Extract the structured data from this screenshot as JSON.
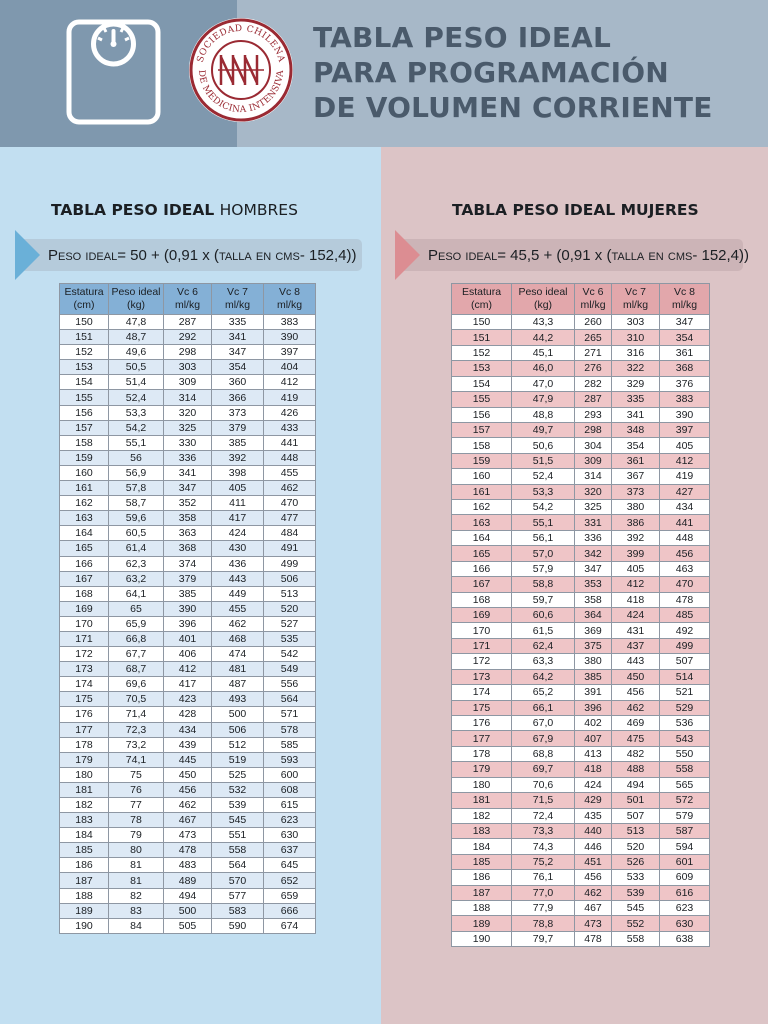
{
  "header": {
    "title_lines": [
      "TABLA PESO IDEAL",
      "PARA PROGRAMACIÓN",
      "DE VOLUMEN CORRIENTE"
    ],
    "seal_text_top": "SOCIEDAD CHILENA",
    "seal_text_bottom": "DE MEDICINA INTENSIVA",
    "icon": "scale-icon"
  },
  "colors": {
    "header_left": "#7f98ae",
    "header_right": "#a7b8c8",
    "title_text": "#4a5a6b",
    "men_panel": "#c2dff1",
    "women_panel": "#dcc4c6",
    "men_header": "#84b0d6",
    "women_header": "#e2a7ab",
    "seal_red": "#9a2a33"
  },
  "men": {
    "heading_bold": "TABLA PESO IDEAL",
    "heading_light": "HOMBRES",
    "formula_label": "Peso ideal",
    "formula_expr": "= 50 + (0,91 x (",
    "formula_inner": "talla en cms",
    "formula_tail": " - 152,4))",
    "columns": [
      "Estatura (cm)",
      "Peso ideal (kg)",
      "Vc 6 ml/kg",
      "Vc 7 ml/kg",
      "Vc 8 ml/kg"
    ],
    "rows": [
      [
        "150",
        "47,8",
        "287",
        "335",
        "383"
      ],
      [
        "151",
        "48,7",
        "292",
        "341",
        "390"
      ],
      [
        "152",
        "49,6",
        "298",
        "347",
        "397"
      ],
      [
        "153",
        "50,5",
        "303",
        "354",
        "404"
      ],
      [
        "154",
        "51,4",
        "309",
        "360",
        "412"
      ],
      [
        "155",
        "52,4",
        "314",
        "366",
        "419"
      ],
      [
        "156",
        "53,3",
        "320",
        "373",
        "426"
      ],
      [
        "157",
        "54,2",
        "325",
        "379",
        "433"
      ],
      [
        "158",
        "55,1",
        "330",
        "385",
        "441"
      ],
      [
        "159",
        "56",
        "336",
        "392",
        "448"
      ],
      [
        "160",
        "56,9",
        "341",
        "398",
        "455"
      ],
      [
        "161",
        "57,8",
        "347",
        "405",
        "462"
      ],
      [
        "162",
        "58,7",
        "352",
        "411",
        "470"
      ],
      [
        "163",
        "59,6",
        "358",
        "417",
        "477"
      ],
      [
        "164",
        "60,5",
        "363",
        "424",
        "484"
      ],
      [
        "165",
        "61,4",
        "368",
        "430",
        "491"
      ],
      [
        "166",
        "62,3",
        "374",
        "436",
        "499"
      ],
      [
        "167",
        "63,2",
        "379",
        "443",
        "506"
      ],
      [
        "168",
        "64,1",
        "385",
        "449",
        "513"
      ],
      [
        "169",
        "65",
        "390",
        "455",
        "520"
      ],
      [
        "170",
        "65,9",
        "396",
        "462",
        "527"
      ],
      [
        "171",
        "66,8",
        "401",
        "468",
        "535"
      ],
      [
        "172",
        "67,7",
        "406",
        "474",
        "542"
      ],
      [
        "173",
        "68,7",
        "412",
        "481",
        "549"
      ],
      [
        "174",
        "69,6",
        "417",
        "487",
        "556"
      ],
      [
        "175",
        "70,5",
        "423",
        "493",
        "564"
      ],
      [
        "176",
        "71,4",
        "428",
        "500",
        "571"
      ],
      [
        "177",
        "72,3",
        "434",
        "506",
        "578"
      ],
      [
        "178",
        "73,2",
        "439",
        "512",
        "585"
      ],
      [
        "179",
        "74,1",
        "445",
        "519",
        "593"
      ],
      [
        "180",
        "75",
        "450",
        "525",
        "600"
      ],
      [
        "181",
        "76",
        "456",
        "532",
        "608"
      ],
      [
        "182",
        "77",
        "462",
        "539",
        "615"
      ],
      [
        "183",
        "78",
        "467",
        "545",
        "623"
      ],
      [
        "184",
        "79",
        "473",
        "551",
        "630"
      ],
      [
        "185",
        "80",
        "478",
        "558",
        "637"
      ],
      [
        "186",
        "81",
        "483",
        "564",
        "645"
      ],
      [
        "187",
        "81",
        "489",
        "570",
        "652"
      ],
      [
        "188",
        "82",
        "494",
        "577",
        "659"
      ],
      [
        "189",
        "83",
        "500",
        "583",
        "666"
      ],
      [
        "190",
        "84",
        "505",
        "590",
        "674"
      ]
    ]
  },
  "women": {
    "heading": "TABLA PESO IDEAL MUJERES",
    "formula_label": "Peso ideal",
    "formula_expr": "= 45,5 + (0,91 x (",
    "formula_inner": "talla en cms",
    "formula_tail": " - 152,4))",
    "columns": [
      "Estatura (cm)",
      "Peso ideal (kg)",
      "Vc 6 ml/kg",
      "Vc 7 ml/kg",
      "Vc 8 ml/kg"
    ],
    "rows": [
      [
        "150",
        "43,3",
        "260",
        "303",
        "347"
      ],
      [
        "151",
        "44,2",
        "265",
        "310",
        "354"
      ],
      [
        "152",
        "45,1",
        "271",
        "316",
        "361"
      ],
      [
        "153",
        "46,0",
        "276",
        "322",
        "368"
      ],
      [
        "154",
        "47,0",
        "282",
        "329",
        "376"
      ],
      [
        "155",
        "47,9",
        "287",
        "335",
        "383"
      ],
      [
        "156",
        "48,8",
        "293",
        "341",
        "390"
      ],
      [
        "157",
        "49,7",
        "298",
        "348",
        "397"
      ],
      [
        "158",
        "50,6",
        "304",
        "354",
        "405"
      ],
      [
        "159",
        "51,5",
        "309",
        "361",
        "412"
      ],
      [
        "160",
        "52,4",
        "314",
        "367",
        "419"
      ],
      [
        "161",
        "53,3",
        "320",
        "373",
        "427"
      ],
      [
        "162",
        "54,2",
        "325",
        "380",
        "434"
      ],
      [
        "163",
        "55,1",
        "331",
        "386",
        "441"
      ],
      [
        "164",
        "56,1",
        "336",
        "392",
        "448"
      ],
      [
        "165",
        "57,0",
        "342",
        "399",
        "456"
      ],
      [
        "166",
        "57,9",
        "347",
        "405",
        "463"
      ],
      [
        "167",
        "58,8",
        "353",
        "412",
        "470"
      ],
      [
        "168",
        "59,7",
        "358",
        "418",
        "478"
      ],
      [
        "169",
        "60,6",
        "364",
        "424",
        "485"
      ],
      [
        "170",
        "61,5",
        "369",
        "431",
        "492"
      ],
      [
        "171",
        "62,4",
        "375",
        "437",
        "499"
      ],
      [
        "172",
        "63,3",
        "380",
        "443",
        "507"
      ],
      [
        "173",
        "64,2",
        "385",
        "450",
        "514"
      ],
      [
        "174",
        "65,2",
        "391",
        "456",
        "521"
      ],
      [
        "175",
        "66,1",
        "396",
        "462",
        "529"
      ],
      [
        "176",
        "67,0",
        "402",
        "469",
        "536"
      ],
      [
        "177",
        "67,9",
        "407",
        "475",
        "543"
      ],
      [
        "178",
        "68,8",
        "413",
        "482",
        "550"
      ],
      [
        "179",
        "69,7",
        "418",
        "488",
        "558"
      ],
      [
        "180",
        "70,6",
        "424",
        "494",
        "565"
      ],
      [
        "181",
        "71,5",
        "429",
        "501",
        "572"
      ],
      [
        "182",
        "72,4",
        "435",
        "507",
        "579"
      ],
      [
        "183",
        "73,3",
        "440",
        "513",
        "587"
      ],
      [
        "184",
        "74,3",
        "446",
        "520",
        "594"
      ],
      [
        "185",
        "75,2",
        "451",
        "526",
        "601"
      ],
      [
        "186",
        "76,1",
        "456",
        "533",
        "609"
      ],
      [
        "187",
        "77,0",
        "462",
        "539",
        "616"
      ],
      [
        "188",
        "77,9",
        "467",
        "545",
        "623"
      ],
      [
        "189",
        "78,8",
        "473",
        "552",
        "630"
      ],
      [
        "190",
        "79,7",
        "478",
        "558",
        "638"
      ]
    ]
  }
}
